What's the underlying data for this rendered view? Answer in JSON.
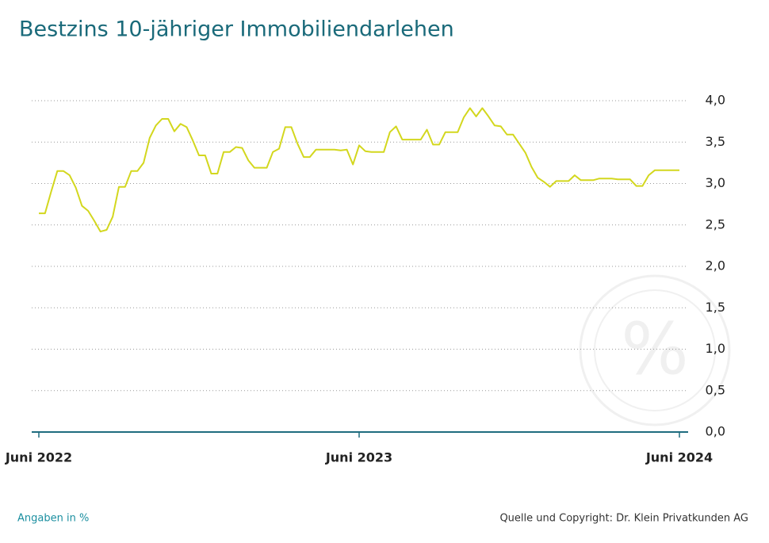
{
  "chart_data": {
    "type": "line",
    "title": "Bestzins 10-jähriger Immobiliendarlehen",
    "note": "Angaben in %",
    "source": "Quelle und Copyright: Dr. Klein Privatkunden AG",
    "categories": [
      "Juni 2022",
      null,
      null,
      null,
      null,
      null,
      null,
      null,
      null,
      null,
      null,
      null,
      null,
      null,
      null,
      null,
      null,
      null,
      null,
      null,
      null,
      null,
      null,
      null,
      null,
      null,
      null,
      null,
      null,
      null,
      null,
      null,
      null,
      null,
      null,
      null,
      null,
      null,
      null,
      null,
      null,
      null,
      null,
      null,
      null,
      null,
      null,
      null,
      null,
      null,
      null,
      null,
      "Juni 2023",
      null,
      null,
      null,
      null,
      null,
      null,
      null,
      null,
      null,
      null,
      null,
      null,
      null,
      null,
      null,
      null,
      null,
      null,
      null,
      null,
      null,
      null,
      null,
      null,
      null,
      null,
      null,
      null,
      null,
      null,
      null,
      null,
      null,
      null,
      null,
      null,
      null,
      null,
      null,
      null,
      null,
      null,
      null,
      null,
      null,
      null,
      null,
      null,
      null,
      null,
      null,
      "Juni 2024"
    ],
    "series": [
      {
        "color": "#d3d71e",
        "values": [
          2.64,
          2.64,
          2.9,
          3.15,
          3.15,
          3.1,
          2.95,
          2.73,
          2.67,
          2.55,
          2.42,
          2.44,
          2.6,
          2.96,
          2.96,
          3.15,
          3.15,
          3.25,
          3.55,
          3.7,
          3.78,
          3.78,
          3.63,
          3.72,
          3.68,
          3.52,
          3.34,
          3.34,
          3.12,
          3.12,
          3.38,
          3.38,
          3.44,
          3.43,
          3.28,
          3.19,
          3.19,
          3.19,
          3.38,
          3.42,
          3.68,
          3.68,
          3.48,
          3.32,
          3.32,
          3.41,
          3.41,
          3.41,
          3.41,
          3.4,
          3.41,
          3.23,
          3.46,
          3.39,
          3.38,
          3.38,
          3.38,
          3.62,
          3.69,
          3.53,
          3.53,
          3.53,
          3.53,
          3.65,
          3.47,
          3.47,
          3.62,
          3.62,
          3.62,
          3.8,
          3.91,
          3.81,
          3.91,
          3.81,
          3.7,
          3.69,
          3.59,
          3.59,
          3.48,
          3.37,
          3.2,
          3.07,
          3.02,
          2.96,
          3.03,
          3.03,
          3.03,
          3.1,
          3.04,
          3.04,
          3.04,
          3.06,
          3.06,
          3.06,
          3.05,
          3.05,
          3.05,
          2.97,
          2.97,
          3.1,
          3.16,
          3.16,
          3.16,
          3.16,
          3.16
        ]
      }
    ],
    "ylim": [
      0,
      4
    ],
    "yticks": [
      {
        "value": 0,
        "label": "0,0"
      },
      {
        "value": 0.5,
        "label": "0,5"
      },
      {
        "value": 1,
        "label": "1,0"
      },
      {
        "value": 1.5,
        "label": "1,5"
      },
      {
        "value": 2,
        "label": "2,0"
      },
      {
        "value": 2.5,
        "label": "2,5"
      },
      {
        "value": 3,
        "label": "3,0"
      },
      {
        "value": 3.5,
        "label": "3,5"
      },
      {
        "value": 4,
        "label": "4,0"
      }
    ],
    "grid": true
  }
}
